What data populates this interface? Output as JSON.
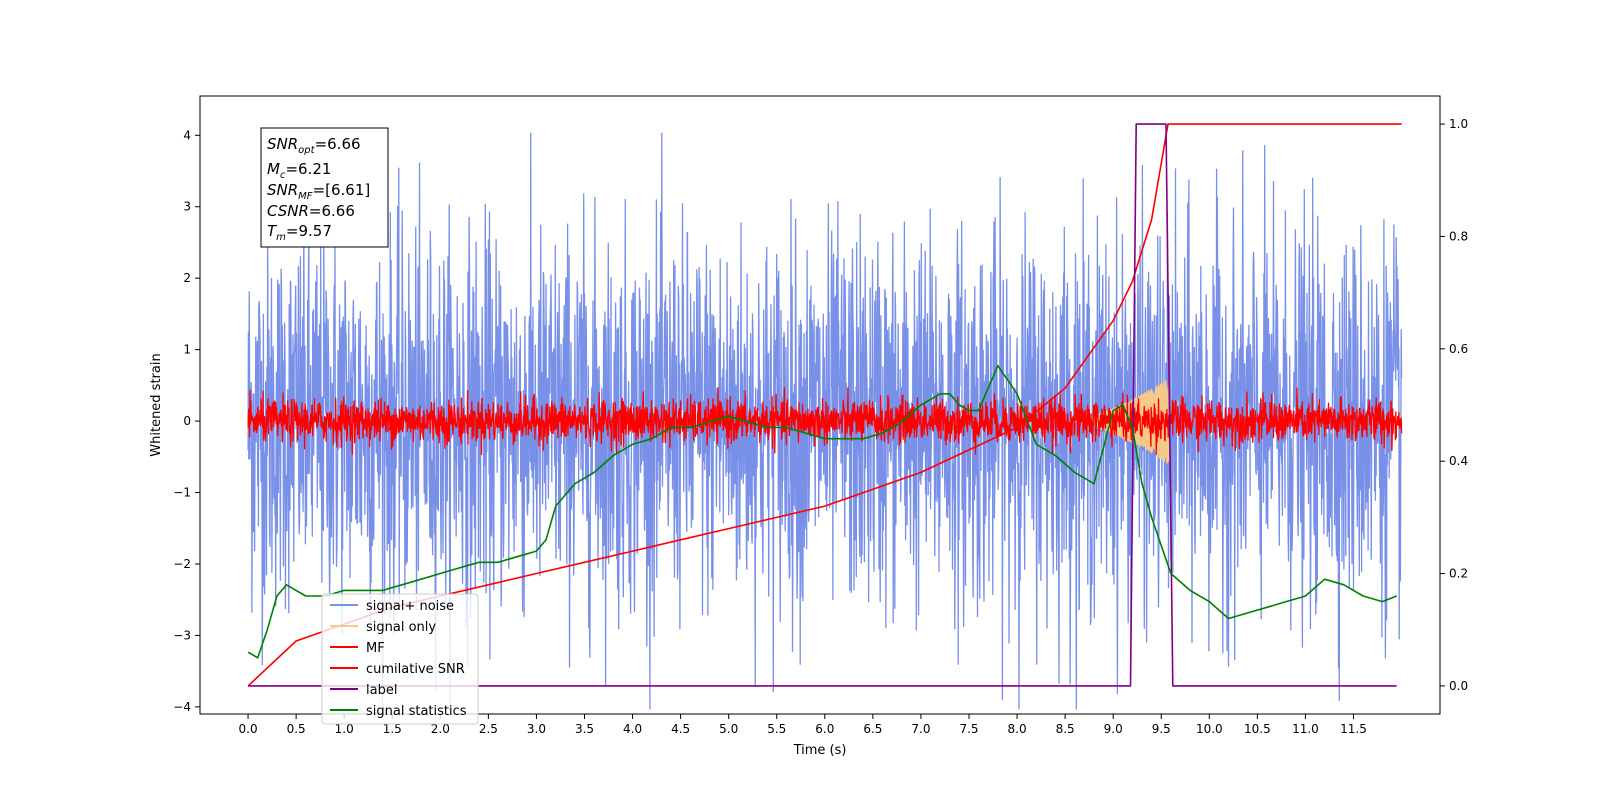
{
  "chart_data": {
    "type": "line",
    "xlabel": "Time (s)",
    "ylabel": "Whitened strain",
    "xlim": [
      -0.5,
      12.4
    ],
    "ylim_left": [
      -4.1,
      4.55
    ],
    "ylim_right": [
      -0.05,
      1.05
    ],
    "x_ticks": [
      0.0,
      0.5,
      1.0,
      1.5,
      2.0,
      2.5,
      3.0,
      3.5,
      4.0,
      4.5,
      5.0,
      5.5,
      6.0,
      6.5,
      7.0,
      7.5,
      8.0,
      8.5,
      9.0,
      9.5,
      10.0,
      10.5,
      11.0,
      11.5
    ],
    "x_tick_labels": [
      "0.0",
      "0.5",
      "1.0",
      "1.5",
      "2.0",
      "2.5",
      "3.0",
      "3.5",
      "4.0",
      "4.5",
      "5.0",
      "5.5",
      "6.0",
      "6.5",
      "7.0",
      "7.5",
      "8.0",
      "8.5",
      "9.0",
      "9.5",
      "10.0",
      "10.5",
      "11.0",
      "11.5"
    ],
    "y_ticks_left": [
      4,
      3,
      2,
      1,
      0,
      -1,
      -2,
      -3,
      -4
    ],
    "y_tick_labels_left": [
      "4",
      "3",
      "2",
      "1",
      "0",
      "−1",
      "−2",
      "−3",
      "−4"
    ],
    "y_ticks_right": [
      1.0,
      0.8,
      0.6,
      0.4,
      0.2,
      0.0
    ],
    "y_tick_labels_right": [
      "1.0",
      "0.8",
      "0.6",
      "0.4",
      "0.2",
      "0.0"
    ],
    "grid": false,
    "legend_position": "lower-left",
    "info_box": [
      {
        "base": "SNR",
        "sub": "opt",
        "value": "=6.66"
      },
      {
        "base": "M",
        "sub": "c",
        "value": "=6.21"
      },
      {
        "base": "SNR",
        "sub": "MF",
        "value": "=[6.61]"
      },
      {
        "base": "CSNR",
        "sub": "",
        "value": "=6.66"
      },
      {
        "base": "T",
        "sub": "m",
        "value": "=9.57"
      }
    ],
    "series": [
      {
        "name": "signal+ noise",
        "color": "#7890e8",
        "axis": "left",
        "kind": "noise",
        "t_range": [
          0.0,
          12.0
        ],
        "std": 1.3
      },
      {
        "name": "signal only",
        "color": "#f5c98a",
        "axis": "left",
        "kind": "chirp",
        "t_range": [
          8.5,
          9.58
        ],
        "peak_amplitude": 0.6
      },
      {
        "name": "MF",
        "color": "#ff0000",
        "axis": "left",
        "kind": "noise",
        "t_range": [
          0.0,
          12.0
        ],
        "std": 0.15
      },
      {
        "name": "cumilative SNR",
        "color": "#ff0000",
        "axis": "right",
        "x": [
          0.0,
          0.5,
          1.0,
          1.5,
          2.0,
          2.5,
          3.0,
          3.5,
          4.0,
          4.5,
          5.0,
          5.5,
          6.0,
          6.5,
          7.0,
          7.5,
          8.0,
          8.5,
          9.0,
          9.2,
          9.4,
          9.57,
          9.6,
          10.0,
          11.0,
          12.0
        ],
        "y": [
          0.0,
          0.08,
          0.11,
          0.14,
          0.16,
          0.18,
          0.2,
          0.22,
          0.24,
          0.26,
          0.28,
          0.3,
          0.32,
          0.35,
          0.38,
          0.42,
          0.46,
          0.53,
          0.65,
          0.72,
          0.83,
          1.0,
          1.0,
          1.0,
          1.0,
          1.0
        ]
      },
      {
        "name": "label",
        "color": "#800080",
        "axis": "right",
        "x": [
          0.0,
          9.18,
          9.24,
          9.55,
          9.62,
          11.95
        ],
        "y": [
          0.0,
          0.0,
          1.0,
          1.0,
          0.0,
          0.0
        ]
      },
      {
        "name": "signal statistics",
        "color": "#008000",
        "axis": "right",
        "x": [
          0.0,
          0.1,
          0.2,
          0.3,
          0.4,
          0.5,
          0.6,
          0.8,
          1.0,
          1.2,
          1.4,
          1.6,
          1.8,
          2.0,
          2.2,
          2.4,
          2.6,
          2.8,
          3.0,
          3.1,
          3.2,
          3.4,
          3.6,
          3.8,
          4.0,
          4.2,
          4.4,
          4.6,
          4.8,
          5.0,
          5.2,
          5.4,
          5.6,
          5.8,
          6.0,
          6.2,
          6.4,
          6.6,
          6.8,
          7.0,
          7.2,
          7.3,
          7.4,
          7.5,
          7.6,
          7.8,
          8.0,
          8.2,
          8.4,
          8.6,
          8.8,
          9.0,
          9.1,
          9.2,
          9.3,
          9.4,
          9.5,
          9.6,
          9.8,
          10.0,
          10.2,
          10.4,
          10.6,
          10.8,
          11.0,
          11.2,
          11.4,
          11.6,
          11.8,
          11.95
        ],
        "y": [
          0.06,
          0.05,
          0.1,
          0.16,
          0.18,
          0.17,
          0.16,
          0.16,
          0.17,
          0.17,
          0.17,
          0.18,
          0.19,
          0.2,
          0.21,
          0.22,
          0.22,
          0.23,
          0.24,
          0.26,
          0.32,
          0.36,
          0.38,
          0.41,
          0.43,
          0.44,
          0.46,
          0.46,
          0.47,
          0.48,
          0.47,
          0.46,
          0.46,
          0.45,
          0.44,
          0.44,
          0.44,
          0.45,
          0.47,
          0.5,
          0.52,
          0.52,
          0.5,
          0.49,
          0.49,
          0.57,
          0.52,
          0.43,
          0.41,
          0.38,
          0.36,
          0.49,
          0.5,
          0.46,
          0.36,
          0.3,
          0.25,
          0.2,
          0.17,
          0.15,
          0.12,
          0.13,
          0.14,
          0.15,
          0.16,
          0.19,
          0.18,
          0.16,
          0.15,
          0.16
        ]
      }
    ]
  }
}
